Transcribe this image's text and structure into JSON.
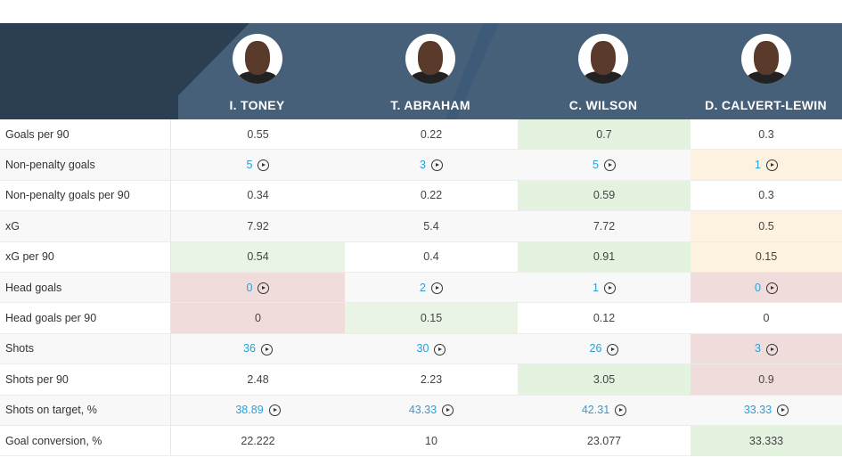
{
  "players": [
    {
      "name": "I. TONEY"
    },
    {
      "name": "T. ABRAHAM"
    },
    {
      "name": "C. WILSON"
    },
    {
      "name": "D. CALVERT-LEWIN"
    }
  ],
  "colors": {
    "better": "#e4f2e0",
    "average": "#fcf2df",
    "worse": "#f1dcdc",
    "link": "#2a9fd6",
    "header": "#46607a"
  },
  "rows": [
    {
      "label": "Goals per 90",
      "values": [
        "0.55",
        "0.22",
        "0.7",
        "0.3"
      ],
      "shade": [
        "",
        "",
        "green",
        ""
      ],
      "video": false
    },
    {
      "label": "Non-penalty goals",
      "values": [
        "5",
        "3",
        "5",
        "1"
      ],
      "shade": [
        "",
        "",
        "",
        "orange"
      ],
      "video": true
    },
    {
      "label": "Non-penalty goals per 90",
      "values": [
        "0.34",
        "0.22",
        "0.59",
        "0.3"
      ],
      "shade": [
        "",
        "",
        "green",
        ""
      ],
      "video": false
    },
    {
      "label": "xG",
      "values": [
        "7.92",
        "5.4",
        "7.72",
        "0.5"
      ],
      "shade": [
        "",
        "",
        "",
        "orange"
      ],
      "video": false
    },
    {
      "label": "xG per 90",
      "values": [
        "0.54",
        "0.4",
        "0.91",
        "0.15"
      ],
      "shade": [
        "lightgreen",
        "",
        "green",
        "orange"
      ],
      "video": false
    },
    {
      "label": "Head goals",
      "values": [
        "0",
        "2",
        "1",
        "0"
      ],
      "shade": [
        "red",
        "",
        "",
        "red"
      ],
      "video": true
    },
    {
      "label": "Head goals per 90",
      "values": [
        "0",
        "0.15",
        "0.12",
        "0"
      ],
      "shade": [
        "red",
        "lightgreen",
        "",
        ""
      ],
      "video": false
    },
    {
      "label": "Shots",
      "values": [
        "36",
        "30",
        "26",
        "3"
      ],
      "shade": [
        "",
        "",
        "",
        "red"
      ],
      "video": true
    },
    {
      "label": "Shots per 90",
      "values": [
        "2.48",
        "2.23",
        "3.05",
        "0.9"
      ],
      "shade": [
        "",
        "",
        "green",
        "red"
      ],
      "video": false
    },
    {
      "label": "Shots on target, %",
      "values": [
        "38.89",
        "43.33",
        "42.31",
        "33.33"
      ],
      "shade": [
        "",
        "",
        "",
        ""
      ],
      "video": true
    },
    {
      "label": "Goal conversion, %",
      "values": [
        "22.222",
        "10",
        "23.077",
        "33.333"
      ],
      "shade": [
        "",
        "",
        "",
        "green"
      ],
      "video": false
    }
  ]
}
